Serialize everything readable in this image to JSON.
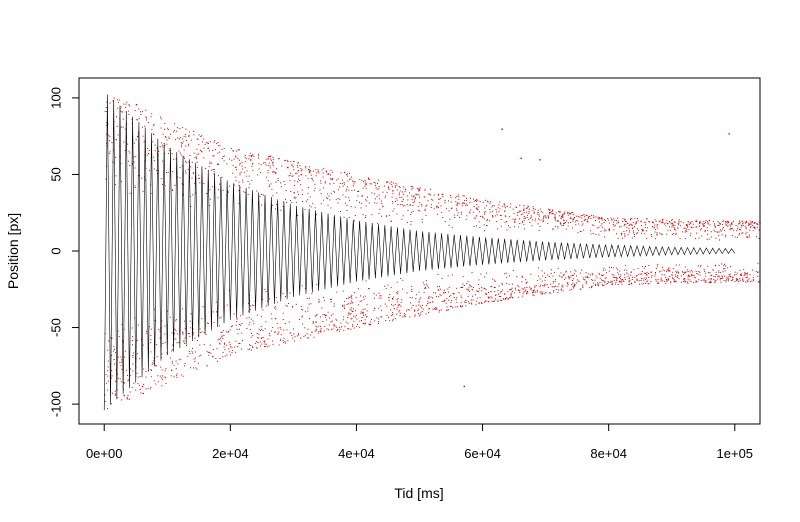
{
  "chart_data": {
    "type": "scatter",
    "title": "",
    "xlabel": "Tid [ms]",
    "ylabel": "Position [px]",
    "xlim": [
      -4000,
      104000
    ],
    "ylim": [
      -113,
      113
    ],
    "grid": false,
    "legend": "none",
    "x_ticks": [
      {
        "value": 0,
        "label": "0e+00"
      },
      {
        "value": 20000,
        "label": "2e+04"
      },
      {
        "value": 40000,
        "label": "4e+04"
      },
      {
        "value": 60000,
        "label": "6e+04"
      },
      {
        "value": 80000,
        "label": "8e+04"
      },
      {
        "value": 100000,
        "label": "1e+05"
      }
    ],
    "y_ticks": [
      {
        "value": -100,
        "label": "-100"
      },
      {
        "value": -50,
        "label": "-50"
      },
      {
        "value": 0,
        "label": "0"
      },
      {
        "value": 50,
        "label": "50"
      },
      {
        "value": 100,
        "label": "100"
      }
    ],
    "series": [
      {
        "color": "#000000",
        "style": "line",
        "shape": "damped oscillation",
        "x_range": [
          0,
          100000
        ],
        "envelope_points": [
          [
            0,
            104
          ],
          [
            10000,
            68
          ],
          [
            20000,
            45
          ],
          [
            30000,
            30
          ],
          [
            40000,
            20
          ],
          [
            50000,
            13
          ],
          [
            60000,
            9
          ],
          [
            70000,
            6
          ],
          [
            80000,
            4
          ],
          [
            90000,
            2.5
          ],
          [
            100000,
            1.5
          ]
        ],
        "period_ms": 1000
      },
      {
        "color": "#cc0000",
        "style": "points",
        "shape": "noisy samples",
        "x_range": [
          0,
          104000
        ],
        "outer_band_points": [
          [
            0,
            104
          ],
          [
            20000,
            68
          ],
          [
            40000,
            50
          ],
          [
            60000,
            34
          ],
          [
            80000,
            22
          ],
          [
            100000,
            20
          ],
          [
            104000,
            20
          ]
        ],
        "outliers": [
          [
            5000,
            96
          ],
          [
            63000,
            80
          ],
          [
            66000,
            61
          ],
          [
            69000,
            60
          ],
          [
            99000,
            77
          ],
          [
            57000,
            -88
          ],
          [
            29000,
            55
          ]
        ]
      }
    ]
  }
}
